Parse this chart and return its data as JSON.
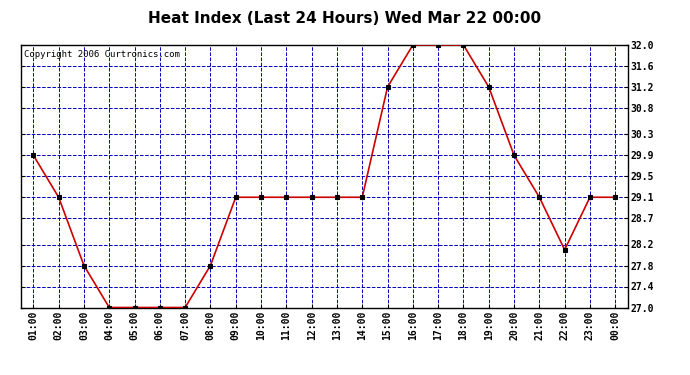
{
  "title": "Heat Index (Last 24 Hours) Wed Mar 22 00:00",
  "copyright": "Copyright 2006 Curtronics.com",
  "x_labels": [
    "01:00",
    "02:00",
    "03:00",
    "04:00",
    "05:00",
    "06:00",
    "07:00",
    "08:00",
    "09:00",
    "10:00",
    "11:00",
    "12:00",
    "13:00",
    "14:00",
    "15:00",
    "16:00",
    "17:00",
    "18:00",
    "19:00",
    "20:00",
    "21:00",
    "22:00",
    "23:00",
    "00:00"
  ],
  "y_values": [
    29.9,
    29.1,
    27.8,
    27.0,
    27.0,
    27.0,
    27.0,
    27.8,
    29.1,
    29.1,
    29.1,
    29.1,
    29.1,
    29.1,
    31.2,
    32.0,
    32.0,
    32.0,
    31.2,
    29.9,
    29.1,
    28.1,
    29.1,
    29.1
  ],
  "ylim_min": 27.0,
  "ylim_max": 32.0,
  "yticks": [
    27.0,
    27.4,
    27.8,
    28.2,
    28.7,
    29.1,
    29.5,
    29.9,
    30.3,
    30.8,
    31.2,
    31.6,
    32.0
  ],
  "line_color": "#cc0000",
  "marker": "s",
  "marker_color": "#000000",
  "marker_size": 2.5,
  "bg_color": "#ffffff",
  "plot_bg_color": "#ffffff",
  "grid_color": "#0000bb",
  "title_fontsize": 11,
  "tick_fontsize": 7,
  "copyright_fontsize": 6.5
}
